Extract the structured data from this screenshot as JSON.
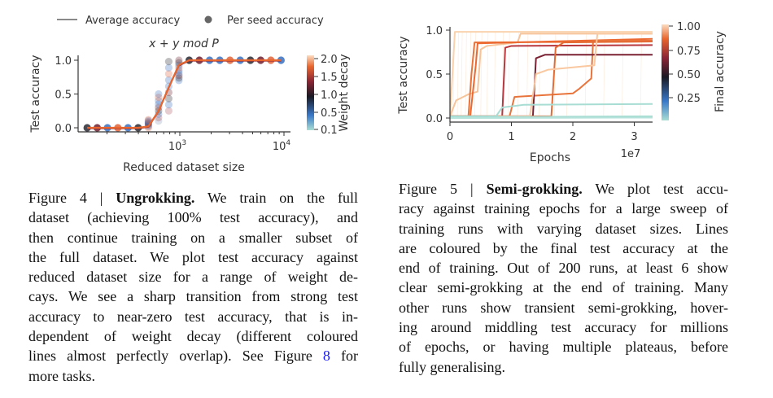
{
  "figure4": {
    "legend": {
      "line_label": "Average accuracy",
      "dot_label": "Per seed accuracy"
    },
    "caption": {
      "prefix": "Figure 4 | ",
      "title": "Ungrokking.",
      "line1_rest": " We train on the full",
      "lines": [
        "dataset (achieving 100% test accuracy), and",
        "then continue training on a smaller subset of",
        "the full dataset. We plot test accuracy against",
        "reduced dataset size for a range of weight de-",
        "cays. We see a sharp transition from strong test",
        "accuracy to near-zero test accuracy, that is in-",
        "dependent of weight decay (different coloured"
      ],
      "line9_pre": "lines almost perfectly overlap). See Figure ",
      "line9_link": "8",
      "line9_post": " for",
      "last_line": "more tasks."
    }
  },
  "figure5": {
    "caption": {
      "prefix": "Figure 5 | ",
      "title": "Semi-grokking.",
      "line1_rest": " We plot test accu-",
      "lines": [
        "racy against training epochs for a large sweep of",
        "training runs with varying dataset sizes. Lines",
        "are coloured by the final test accuracy at the",
        "end of training. Out of 200 runs, at least 6 show",
        "clear semi-grokking at the end of training. Many",
        "other runs show transient semi-grokking, hover-",
        "ing around middling test accuracy for millions",
        "of epochs, or having multiple plateaus, before"
      ],
      "last_line": "fully generalising."
    }
  },
  "chart_data": [
    {
      "type": "scatter",
      "title": "x + y mod P",
      "xlabel": "Reduced dataset size",
      "ylabel": "Test accuracy",
      "xscale": "log",
      "xticks": [
        {
          "base": "10",
          "exp": "3"
        },
        {
          "base": "10",
          "exp": "4"
        }
      ],
      "yticks": [
        "0.0",
        "0.5",
        "1.0"
      ],
      "ylim": [
        0,
        1
      ],
      "colorbar": {
        "label": "Weight decay",
        "ticks": [
          "2.0",
          "1.5",
          "1.0",
          "0.5",
          "0.1"
        ],
        "range": [
          0.1,
          2.0
        ]
      },
      "x": [
        129,
        161,
        202,
        254,
        318,
        398,
        499,
        625,
        783,
        980,
        1230,
        1540,
        1930,
        2420,
        3030,
        3800,
        4760,
        5970,
        7480,
        9370
      ],
      "average_accuracy": [
        0.0,
        0.0,
        0.0,
        0.0,
        0.0,
        0.0,
        0.02,
        0.25,
        0.6,
        0.93,
        1.0,
        1.0,
        1.0,
        1.0,
        1.0,
        1.0,
        1.0,
        1.0,
        1.0,
        1.0
      ],
      "per_seed_range": [
        [
          0,
          0
        ],
        [
          0,
          0
        ],
        [
          0,
          0
        ],
        [
          0,
          0
        ],
        [
          0,
          0
        ],
        [
          0,
          0
        ],
        [
          0,
          0.12
        ],
        [
          0.1,
          0.5
        ],
        [
          0.25,
          0.98
        ],
        [
          0.7,
          1.0
        ],
        [
          1,
          1
        ],
        [
          1,
          1
        ],
        [
          1,
          1
        ],
        [
          1,
          1
        ],
        [
          1,
          1
        ],
        [
          1,
          1
        ],
        [
          1,
          1
        ],
        [
          1,
          1
        ],
        [
          1,
          1
        ],
        [
          1,
          1
        ]
      ],
      "dot_colors": [
        "#2a2a35",
        "#6e2030",
        "#3a70c0",
        "#e0643a",
        "#3a70c0",
        "#2a2a35",
        "#e0643a",
        "#8a9ab8",
        "#b05a60",
        "#3a70c0",
        "#2a2a35",
        "#6e2030",
        "#3a70c0",
        "#3a70c0",
        "#e0643a",
        "#3a70c0",
        "#2a2a35",
        "#6e2030",
        "#e0643a",
        "#3a70c0"
      ],
      "line_color": "#e8662e"
    },
    {
      "type": "line",
      "xlabel": "Epochs",
      "x_multiplier": "1e7",
      "ylabel": "Test accuracy",
      "xticks": [
        "0",
        "1",
        "2",
        "3"
      ],
      "yticks": [
        "0.0",
        "0.5",
        "1.0"
      ],
      "xlim": [
        0,
        3.3
      ],
      "ylim": [
        0,
        1
      ],
      "colorbar": {
        "label": "Final accuracy",
        "ticks": [
          "1.00",
          "0.75",
          "0.50",
          "0.25"
        ]
      },
      "series": [
        {
          "final": 0.98,
          "color": "#f9d2ae",
          "points": [
            [
              0,
              0.02
            ],
            [
              0.08,
              0.98
            ],
            [
              3.3,
              0.98
            ]
          ]
        },
        {
          "final": 0.96,
          "color": "#f7c49a",
          "points": [
            [
              0,
              0.02
            ],
            [
              0.1,
              0.2
            ],
            [
              0.3,
              0.27
            ],
            [
              0.45,
              0.3
            ],
            [
              0.5,
              0.78
            ],
            [
              0.6,
              0.82
            ],
            [
              1.1,
              0.86
            ],
            [
              1.15,
              0.96
            ],
            [
              3.3,
              0.96
            ]
          ]
        },
        {
          "final": 0.87,
          "color": "#e8743b",
          "points": [
            [
              0,
              0.02
            ],
            [
              0.3,
              0.02
            ],
            [
              0.35,
              0.5
            ],
            [
              0.4,
              0.86
            ],
            [
              3.3,
              0.87
            ]
          ]
        },
        {
          "final": 0.9,
          "color": "#ec6a32",
          "points": [
            [
              0,
              0.02
            ],
            [
              0.33,
              0.02
            ],
            [
              0.42,
              0.6
            ],
            [
              0.45,
              0.85
            ],
            [
              3.3,
              0.9
            ]
          ]
        },
        {
          "final": 0.83,
          "color": "#b8383f",
          "points": [
            [
              0,
              0.02
            ],
            [
              0.85,
              0.02
            ],
            [
              0.9,
              0.8
            ],
            [
              1.0,
              0.82
            ],
            [
              3.3,
              0.83
            ]
          ]
        },
        {
          "final": 0.88,
          "color": "#e8743b",
          "points": [
            [
              0,
              0.02
            ],
            [
              0.97,
              0.02
            ],
            [
              1.05,
              0.24
            ],
            [
              2.0,
              0.28
            ],
            [
              2.1,
              0.33
            ],
            [
              2.3,
              0.45
            ],
            [
              2.33,
              0.88
            ],
            [
              3.3,
              0.88
            ]
          ]
        },
        {
          "final": 0.72,
          "color": "#7a2233",
          "points": [
            [
              0,
              0.02
            ],
            [
              1.35,
              0.02
            ],
            [
              1.4,
              0.68
            ],
            [
              1.55,
              0.72
            ],
            [
              3.3,
              0.72
            ]
          ]
        },
        {
          "final": 0.87,
          "color": "#e56b34",
          "points": [
            [
              0,
              0.02
            ],
            [
              1.65,
              0.02
            ],
            [
              1.72,
              0.8
            ],
            [
              1.85,
              0.86
            ],
            [
              3.3,
              0.87
            ]
          ]
        },
        {
          "final": 0.96,
          "color": "#fac8a0",
          "points": [
            [
              0,
              0.02
            ],
            [
              1.3,
              0.02
            ],
            [
              1.4,
              0.5
            ],
            [
              1.6,
              0.55
            ],
            [
              2.35,
              0.6
            ],
            [
              2.4,
              0.96
            ],
            [
              3.3,
              0.96
            ]
          ]
        },
        {
          "final": 0.16,
          "color": "#a8ddd3",
          "points": [
            [
              0,
              0.02
            ],
            [
              0.75,
              0.02
            ],
            [
              0.85,
              0.12
            ],
            [
              1.2,
              0.15
            ],
            [
              3.3,
              0.16
            ]
          ]
        },
        {
          "final": 0.02,
          "color": "#a8ddd3",
          "points": [
            [
              0,
              0.01
            ],
            [
              3.3,
              0.02
            ]
          ]
        },
        {
          "final": 0.01,
          "color": "#b5e2da",
          "points": [
            [
              0,
              0.0
            ],
            [
              3.3,
              0.005
            ]
          ]
        }
      ],
      "faint_run_jumps": [
        0.05,
        0.12,
        0.18,
        0.25,
        0.32,
        0.4,
        0.5,
        0.6,
        0.72,
        0.85,
        0.95,
        1.1,
        1.25,
        1.45,
        1.7,
        1.9,
        2.2,
        2.5,
        2.8,
        3.1
      ]
    }
  ]
}
